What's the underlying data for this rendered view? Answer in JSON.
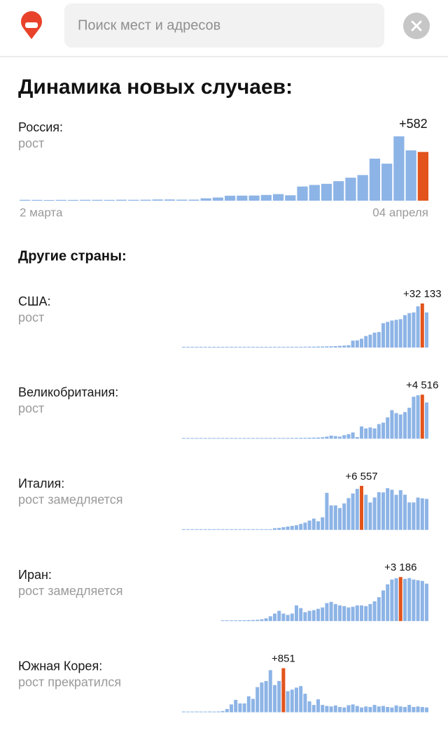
{
  "header": {
    "search_placeholder": "Поиск мест и адресов"
  },
  "title": "Динамика новых случаев:",
  "others_title": "Другие страны:",
  "chart_data": [
    {
      "type": "bar",
      "title": "Россия:",
      "subtitle": "рост",
      "categories": [
        "2 марта",
        null,
        null,
        null,
        null,
        null,
        null,
        null,
        null,
        null,
        null,
        null,
        null,
        null,
        null,
        null,
        null,
        null,
        null,
        null,
        null,
        null,
        null,
        null,
        null,
        null,
        null,
        null,
        null,
        null,
        null,
        null,
        null,
        "04 апреля"
      ],
      "values": [
        2,
        1,
        0,
        1,
        1,
        2,
        2,
        1,
        3,
        2,
        3,
        6,
        6,
        4,
        4,
        20,
        30,
        52,
        53,
        54,
        61,
        71,
        57,
        163,
        182,
        196,
        228,
        270,
        302,
        501,
        440,
        771,
        601,
        582
      ],
      "value_labels": [
        null,
        null,
        null,
        null,
        null,
        null,
        null,
        null,
        null,
        null,
        null,
        null,
        null,
        null,
        null,
        null,
        null,
        null,
        null,
        null,
        null,
        null,
        null,
        null,
        null,
        null,
        null,
        null,
        null,
        null,
        null,
        null,
        null,
        "+582"
      ],
      "color": "#8db4e6",
      "highlight_color": "#e2541c"
    },
    {
      "type": "bar",
      "title": "США:",
      "subtitle": "рост",
      "values": [
        0,
        0,
        0,
        1,
        0,
        0,
        0,
        0,
        2,
        0,
        0,
        1,
        0,
        0,
        3,
        0,
        0,
        5,
        0,
        2,
        0,
        8,
        6,
        10,
        14,
        20,
        25,
        40,
        60,
        100,
        120,
        200,
        250,
        350,
        400,
        500,
        700,
        900,
        1200,
        4600,
        4800,
        6000,
        8000,
        9000,
        10500,
        11000,
        17500,
        18500,
        19500,
        20000,
        20500,
        23500,
        25000,
        25500,
        30000,
        32133,
        25500
      ],
      "value_labels": [
        null,
        null,
        null,
        null,
        null,
        null,
        null,
        null,
        null,
        null,
        null,
        null,
        null,
        null,
        null,
        null,
        null,
        null,
        null,
        null,
        null,
        null,
        null,
        null,
        null,
        null,
        null,
        null,
        null,
        null,
        null,
        null,
        null,
        null,
        null,
        null,
        null,
        null,
        null,
        null,
        null,
        null,
        null,
        null,
        null,
        null,
        null,
        null,
        null,
        null,
        null,
        null,
        null,
        null,
        null,
        "+32 133",
        null
      ],
      "color": "#8db4e6",
      "highlight_color": "#e2541c"
    },
    {
      "type": "bar",
      "title": "Великобритания:",
      "subtitle": "рост",
      "values": [
        0,
        0,
        0,
        0,
        0,
        0,
        0,
        0,
        0,
        0,
        1,
        0,
        0,
        0,
        1,
        0,
        0,
        2,
        0,
        3,
        1,
        5,
        2,
        3,
        5,
        10,
        12,
        18,
        20,
        30,
        40,
        50,
        80,
        150,
        250,
        200,
        150,
        300,
        400,
        580,
        100,
        1200,
        1000,
        1100,
        1000,
        1450,
        1600,
        2150,
        2900,
        2600,
        2450,
        2700,
        3150,
        4300,
        4450,
        4516,
        3700
      ],
      "value_labels": [
        null,
        null,
        null,
        null,
        null,
        null,
        null,
        null,
        null,
        null,
        null,
        null,
        null,
        null,
        null,
        null,
        null,
        null,
        null,
        null,
        null,
        null,
        null,
        null,
        null,
        null,
        null,
        null,
        null,
        null,
        null,
        null,
        null,
        null,
        null,
        null,
        null,
        null,
        null,
        null,
        null,
        null,
        null,
        null,
        null,
        null,
        null,
        null,
        null,
        null,
        null,
        null,
        null,
        null,
        null,
        "+4 516",
        null
      ],
      "color": "#8db4e6",
      "highlight_color": "#e2541c"
    },
    {
      "type": "bar",
      "title": "Италия:",
      "subtitle": "рост замедляется",
      "values": [
        0,
        0,
        0,
        0,
        0,
        0,
        0,
        0,
        0,
        0,
        0,
        0,
        0,
        1,
        0,
        0,
        0,
        0,
        0,
        0,
        0,
        150,
        200,
        300,
        400,
        500,
        600,
        800,
        1000,
        1300,
        1600,
        1200,
        1800,
        5500,
        3600,
        3600,
        3200,
        3900,
        4700,
        5400,
        6100,
        6557,
        5210,
        4050,
        4800,
        5600,
        5560,
        6200,
        5970,
        5200,
        5900,
        5217,
        4050,
        4053,
        4782,
        4668,
        4585
      ],
      "value_labels": [
        null,
        null,
        null,
        null,
        null,
        null,
        null,
        null,
        null,
        null,
        null,
        null,
        null,
        null,
        null,
        null,
        null,
        null,
        null,
        null,
        null,
        null,
        null,
        null,
        null,
        null,
        null,
        null,
        null,
        null,
        null,
        null,
        null,
        null,
        null,
        null,
        null,
        null,
        null,
        null,
        null,
        "+6 557",
        null,
        null,
        null,
        null,
        null,
        null,
        null,
        null,
        null,
        null,
        null,
        null,
        null,
        null,
        null
      ],
      "color": "#8db4e6",
      "highlight_color": "#e2541c"
    },
    {
      "type": "bar",
      "title": "Иран:",
      "subtitle": "рост замедляется",
      "values": [
        0,
        2,
        3,
        5,
        10,
        15,
        20,
        30,
        40,
        80,
        150,
        300,
        500,
        700,
        500,
        400,
        500,
        1100,
        900,
        600,
        700,
        750,
        850,
        950,
        1270,
        1360,
        1200,
        1100,
        1050,
        950,
        1000,
        1100,
        1100,
        1050,
        1200,
        1400,
        1700,
        2200,
        2650,
        3000,
        3100,
        3186,
        3050,
        3110,
        3000,
        2950,
        2900,
        2700
      ],
      "value_labels": [
        null,
        null,
        null,
        null,
        null,
        null,
        null,
        null,
        null,
        null,
        null,
        null,
        null,
        null,
        null,
        null,
        null,
        null,
        null,
        null,
        null,
        null,
        null,
        null,
        null,
        null,
        null,
        null,
        null,
        null,
        null,
        null,
        null,
        null,
        null,
        null,
        null,
        null,
        null,
        null,
        null,
        "+3 186",
        null,
        null,
        null,
        null,
        null,
        null
      ],
      "color": "#8db4e6",
      "highlight_color": "#e2541c"
    },
    {
      "type": "bar",
      "title": "Южная Корея:",
      "subtitle": "рост прекратился",
      "values": [
        1,
        0,
        0,
        1,
        0,
        0,
        1,
        0,
        2,
        10,
        50,
        140,
        230,
        160,
        160,
        300,
        250,
        480,
        570,
        600,
        813,
        520,
        600,
        851,
        400,
        430,
        470,
        500,
        350,
        200,
        130,
        240,
        130,
        110,
        100,
        120,
        90,
        80,
        125,
        140,
        110,
        80,
        100,
        90,
        130,
        100,
        110,
        90,
        80,
        120,
        100,
        90,
        130,
        90,
        100,
        90,
        80
      ],
      "value_labels": [
        null,
        null,
        null,
        null,
        null,
        null,
        null,
        null,
        null,
        null,
        null,
        null,
        null,
        null,
        null,
        null,
        null,
        null,
        null,
        null,
        null,
        null,
        null,
        "+851",
        null,
        null,
        null,
        null,
        null,
        null,
        null,
        null,
        null,
        null,
        null,
        null,
        null,
        null,
        null,
        null,
        null,
        null,
        null,
        null,
        null,
        null,
        null,
        null,
        null,
        null,
        null,
        null,
        null,
        null,
        null,
        null,
        null
      ],
      "color": "#8db4e6",
      "highlight_color": "#e2541c"
    }
  ]
}
